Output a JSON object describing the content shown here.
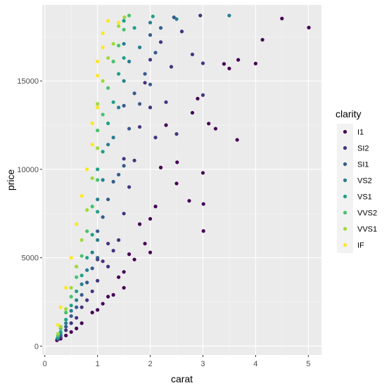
{
  "chart_data": {
    "type": "scatter",
    "xlabel": "carat",
    "ylabel": "price",
    "xlim": [
      -0.05,
      5.25
    ],
    "ylim": [
      -500,
      19300
    ],
    "xticks": [
      0,
      1,
      2,
      3,
      4,
      5
    ],
    "yticks": [
      0,
      5000,
      10000,
      15000
    ],
    "x_tick_labels": [
      "0",
      "1",
      "2",
      "3",
      "4",
      "5"
    ],
    "y_tick_labels": [
      "0",
      "5000",
      "10000",
      "15000"
    ],
    "grid": true,
    "background": "#EBEBEB",
    "legend": {
      "title": "clarity",
      "placement": "right"
    },
    "series": [
      {
        "name": "I1",
        "color": "#440154",
        "points": [
          [
            5.01,
            18018
          ],
          [
            4.5,
            18531
          ],
          [
            4.13,
            17329
          ],
          [
            4.0,
            15984
          ],
          [
            3.67,
            16193
          ],
          [
            3.65,
            11668
          ],
          [
            3.5,
            15705
          ],
          [
            3.4,
            15964
          ],
          [
            3.24,
            12300
          ],
          [
            3.11,
            12587
          ],
          [
            3.01,
            6513
          ],
          [
            3.01,
            8040
          ],
          [
            3.0,
            9800
          ],
          [
            2.9,
            14000
          ],
          [
            2.8,
            13200
          ],
          [
            2.74,
            8220
          ],
          [
            2.51,
            10400
          ],
          [
            2.5,
            9200
          ],
          [
            2.3,
            12500
          ],
          [
            2.2,
            10100
          ],
          [
            2.1,
            7900
          ],
          [
            2.0,
            5300
          ],
          [
            2.0,
            7200
          ],
          [
            1.9,
            5800
          ],
          [
            1.8,
            6900
          ],
          [
            1.7,
            4900
          ],
          [
            1.6,
            5200
          ],
          [
            1.5,
            4200
          ],
          [
            1.5,
            3300
          ],
          [
            1.4,
            3900
          ],
          [
            1.3,
            2900
          ],
          [
            1.2,
            2800
          ],
          [
            1.1,
            2400
          ],
          [
            1.0,
            2050
          ],
          [
            0.9,
            1900
          ],
          [
            0.7,
            1300
          ],
          [
            0.6,
            1000
          ],
          [
            0.5,
            800
          ],
          [
            0.4,
            600
          ],
          [
            0.3,
            420
          ],
          [
            0.23,
            330
          ]
        ]
      },
      {
        "name": "SI2",
        "color": "#46337E",
        "points": [
          [
            2.95,
            18700
          ],
          [
            3.0,
            16000
          ],
          [
            3.0,
            14200
          ],
          [
            2.8,
            16500
          ],
          [
            2.6,
            17800
          ],
          [
            2.5,
            12000
          ],
          [
            2.4,
            15800
          ],
          [
            2.3,
            13800
          ],
          [
            2.2,
            17200
          ],
          [
            2.1,
            11800
          ],
          [
            2.0,
            16200
          ],
          [
            2.0,
            13500
          ],
          [
            1.9,
            14900
          ],
          [
            1.8,
            12400
          ],
          [
            1.7,
            10500
          ],
          [
            1.6,
            9000
          ],
          [
            1.5,
            10600
          ],
          [
            1.5,
            7500
          ],
          [
            1.4,
            6000
          ],
          [
            1.3,
            5400
          ],
          [
            1.2,
            5800
          ],
          [
            1.2,
            4500
          ],
          [
            1.1,
            4800
          ],
          [
            1.0,
            3700
          ],
          [
            1.0,
            4900
          ],
          [
            0.9,
            3100
          ],
          [
            0.8,
            2600
          ],
          [
            0.7,
            2200
          ],
          [
            0.6,
            1600
          ],
          [
            0.5,
            1300
          ],
          [
            0.4,
            900
          ],
          [
            0.3,
            500
          ],
          [
            0.25,
            380
          ]
        ]
      },
      {
        "name": "SI1",
        "color": "#365C8D",
        "points": [
          [
            2.45,
            18600
          ],
          [
            2.2,
            18000
          ],
          [
            2.1,
            16600
          ],
          [
            2.0,
            17600
          ],
          [
            2.0,
            14800
          ],
          [
            1.9,
            15400
          ],
          [
            1.8,
            13700
          ],
          [
            1.7,
            14300
          ],
          [
            1.6,
            12300
          ],
          [
            1.5,
            13600
          ],
          [
            1.5,
            10200
          ],
          [
            1.4,
            9700
          ],
          [
            1.3,
            9300
          ],
          [
            1.2,
            8300
          ],
          [
            1.1,
            7300
          ],
          [
            1.0,
            6500
          ],
          [
            1.0,
            5000
          ],
          [
            0.9,
            4400
          ],
          [
            0.8,
            3600
          ],
          [
            0.7,
            2900
          ],
          [
            0.6,
            2200
          ],
          [
            0.5,
            1700
          ],
          [
            0.4,
            1100
          ],
          [
            0.3,
            600
          ],
          [
            0.25,
            420
          ]
        ]
      },
      {
        "name": "VS2",
        "color": "#277F8E",
        "points": [
          [
            3.5,
            18700
          ],
          [
            2.5,
            18500
          ],
          [
            2.0,
            18300
          ],
          [
            1.8,
            16900
          ],
          [
            1.6,
            16100
          ],
          [
            1.5,
            17100
          ],
          [
            1.5,
            15000
          ],
          [
            1.4,
            13500
          ],
          [
            1.3,
            11800
          ],
          [
            1.2,
            11400
          ],
          [
            1.1,
            9400
          ],
          [
            1.0,
            8300
          ],
          [
            1.0,
            6000
          ],
          [
            0.9,
            5300
          ],
          [
            0.8,
            4300
          ],
          [
            0.7,
            3500
          ],
          [
            0.6,
            2600
          ],
          [
            0.5,
            2000
          ],
          [
            0.4,
            1300
          ],
          [
            0.3,
            700
          ],
          [
            0.24,
            450
          ]
        ]
      },
      {
        "name": "VS1",
        "color": "#1FA187",
        "points": [
          [
            2.05,
            18650
          ],
          [
            1.7,
            18000
          ],
          [
            1.5,
            18400
          ],
          [
            1.5,
            16300
          ],
          [
            1.4,
            15400
          ],
          [
            1.3,
            13800
          ],
          [
            1.2,
            12600
          ],
          [
            1.1,
            11000
          ],
          [
            1.0,
            10000
          ],
          [
            1.0,
            7600
          ],
          [
            0.9,
            6300
          ],
          [
            0.8,
            5000
          ],
          [
            0.7,
            4000
          ],
          [
            0.6,
            3100
          ],
          [
            0.5,
            2300
          ],
          [
            0.4,
            1500
          ],
          [
            0.3,
            800
          ],
          [
            0.25,
            500
          ]
        ]
      },
      {
        "name": "VVS2",
        "color": "#4AC16D",
        "points": [
          [
            1.6,
            18700
          ],
          [
            1.5,
            17900
          ],
          [
            1.4,
            17000
          ],
          [
            1.3,
            16100
          ],
          [
            1.2,
            14600
          ],
          [
            1.1,
            13100
          ],
          [
            1.0,
            12200
          ],
          [
            1.0,
            9400
          ],
          [
            0.9,
            7900
          ],
          [
            0.8,
            6500
          ],
          [
            0.7,
            5100
          ],
          [
            0.6,
            3900
          ],
          [
            0.5,
            2800
          ],
          [
            0.4,
            1900
          ],
          [
            0.3,
            1000
          ],
          [
            0.25,
            600
          ]
        ]
      },
      {
        "name": "VVS1",
        "color": "#9FDA3A",
        "points": [
          [
            1.51,
            18600
          ],
          [
            1.4,
            18100
          ],
          [
            1.3,
            17100
          ],
          [
            1.2,
            16300
          ],
          [
            1.1,
            15000
          ],
          [
            1.0,
            13700
          ],
          [
            1.0,
            11200
          ],
          [
            0.9,
            9500
          ],
          [
            0.8,
            7700
          ],
          [
            0.7,
            6000
          ],
          [
            0.6,
            4500
          ],
          [
            0.5,
            3300
          ],
          [
            0.4,
            2100
          ],
          [
            0.3,
            1100
          ],
          [
            0.25,
            700
          ]
        ]
      },
      {
        "name": "IF",
        "color": "#FDE725",
        "points": [
          [
            1.4,
            18300
          ],
          [
            1.2,
            18400
          ],
          [
            1.1,
            17700
          ],
          [
            1.1,
            16900
          ],
          [
            1.0,
            16100
          ],
          [
            1.0,
            15300
          ],
          [
            1.0,
            13500
          ],
          [
            0.9,
            12600
          ],
          [
            0.9,
            11400
          ],
          [
            0.8,
            10000
          ],
          [
            0.7,
            8500
          ],
          [
            0.6,
            6900
          ],
          [
            0.5,
            5000
          ],
          [
            0.4,
            3300
          ],
          [
            0.3,
            2200
          ],
          [
            0.25,
            1200
          ]
        ]
      }
    ]
  }
}
